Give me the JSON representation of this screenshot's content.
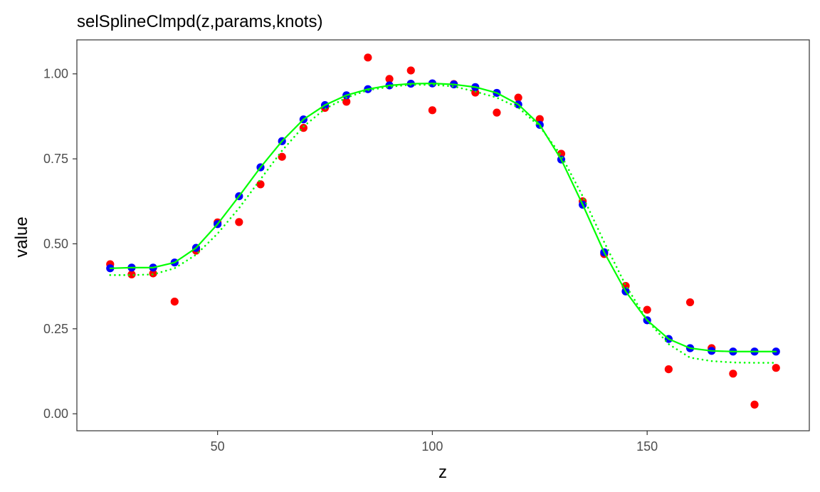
{
  "chart_data": {
    "type": "scatter",
    "title": "selSplineClmpd(z,params,knots)",
    "xlabel": "z",
    "ylabel": "value",
    "xlim": [
      17.25,
      187.75
    ],
    "ylim": [
      -0.05,
      1.1
    ],
    "x_ticks": [
      {
        "value": 50,
        "label": "50"
      },
      {
        "value": 100,
        "label": "100"
      },
      {
        "value": 150,
        "label": "150"
      }
    ],
    "y_ticks": [
      {
        "value": 0,
        "label": "0.00"
      },
      {
        "value": 0.25,
        "label": "0.25"
      },
      {
        "value": 0.5,
        "label": "0.50"
      },
      {
        "value": 0.75,
        "label": "0.75"
      },
      {
        "value": 1,
        "label": "1.00"
      }
    ],
    "grid": false,
    "legend": "none",
    "series": [
      {
        "color": "#FF0000",
        "style": "points",
        "x": [
          25,
          30,
          35,
          40,
          45,
          50,
          55,
          60,
          65,
          70,
          75,
          80,
          85,
          90,
          95,
          100,
          105,
          110,
          115,
          120,
          125,
          130,
          135,
          140,
          145,
          150,
          155,
          160,
          165,
          170,
          175,
          180
        ],
        "y": [
          0.44,
          0.41,
          0.413,
          0.33,
          0.48,
          0.563,
          0.564,
          0.675,
          0.756,
          0.841,
          0.9,
          0.918,
          1.048,
          0.985,
          1.01,
          0.893,
          0.97,
          0.945,
          0.886,
          0.93,
          0.867,
          0.765,
          0.625,
          0.47,
          0.376,
          0.306,
          0.131,
          0.328,
          0.193,
          0.118,
          0.027,
          0.135
        ]
      },
      {
        "color": "#0000FF",
        "style": "points",
        "x": [
          25,
          30,
          35,
          40,
          45,
          50,
          55,
          60,
          65,
          70,
          75,
          80,
          85,
          90,
          95,
          100,
          105,
          110,
          115,
          120,
          125,
          130,
          135,
          140,
          145,
          150,
          155,
          160,
          165,
          170,
          175,
          180
        ],
        "y": [
          0.428,
          0.43,
          0.43,
          0.445,
          0.488,
          0.558,
          0.64,
          0.725,
          0.802,
          0.866,
          0.908,
          0.937,
          0.955,
          0.966,
          0.971,
          0.972,
          0.969,
          0.961,
          0.944,
          0.91,
          0.85,
          0.748,
          0.615,
          0.475,
          0.36,
          0.275,
          0.22,
          0.193,
          0.185,
          0.183,
          0.183,
          0.183
        ]
      },
      {
        "color": "#00FF00",
        "style": "line",
        "x": [
          25,
          30,
          35,
          40,
          45,
          50,
          55,
          60,
          65,
          70,
          75,
          80,
          85,
          90,
          95,
          100,
          105,
          110,
          115,
          120,
          125,
          130,
          135,
          140,
          145,
          150,
          155,
          160,
          165,
          170,
          175,
          180
        ],
        "y": [
          0.428,
          0.43,
          0.43,
          0.445,
          0.488,
          0.558,
          0.64,
          0.725,
          0.802,
          0.866,
          0.908,
          0.937,
          0.955,
          0.966,
          0.971,
          0.972,
          0.969,
          0.961,
          0.944,
          0.91,
          0.85,
          0.748,
          0.615,
          0.475,
          0.36,
          0.275,
          0.22,
          0.193,
          0.185,
          0.183,
          0.183,
          0.183
        ]
      },
      {
        "color": "#00FF00",
        "style": "dotted-line",
        "x": [
          25,
          30,
          35,
          40,
          45,
          50,
          55,
          60,
          65,
          70,
          75,
          80,
          85,
          90,
          95,
          100,
          105,
          110,
          115,
          120,
          125,
          130,
          135,
          140,
          145,
          150,
          155,
          160,
          165,
          170,
          175,
          180
        ],
        "y": [
          0.408,
          0.408,
          0.41,
          0.428,
          0.468,
          0.53,
          0.605,
          0.69,
          0.774,
          0.845,
          0.897,
          0.93,
          0.952,
          0.962,
          0.968,
          0.968,
          0.963,
          0.948,
          0.93,
          0.901,
          0.845,
          0.76,
          0.64,
          0.505,
          0.378,
          0.275,
          0.205,
          0.165,
          0.155,
          0.151,
          0.15,
          0.15
        ]
      }
    ]
  }
}
